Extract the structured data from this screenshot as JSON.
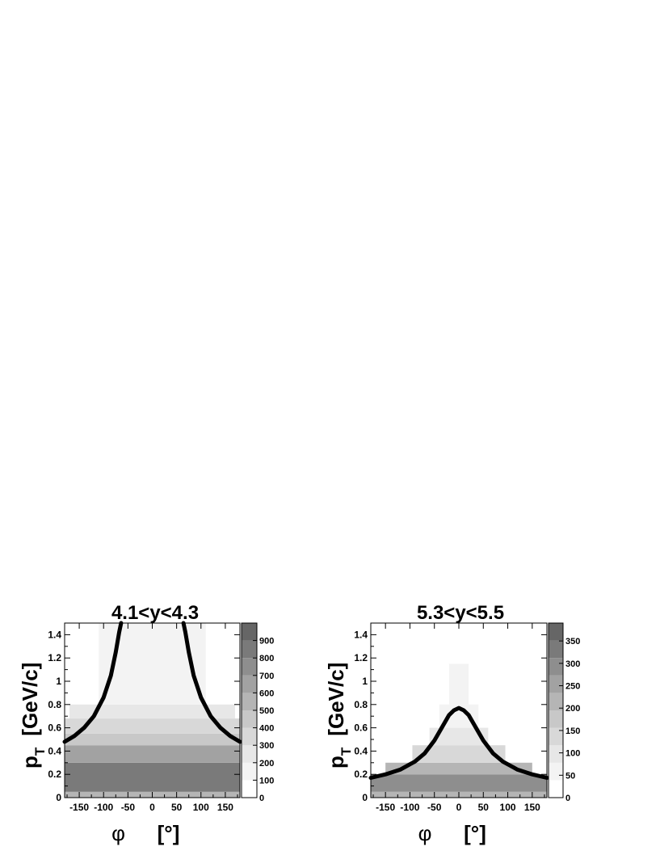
{
  "chart_data": [
    {
      "type": "heatmap",
      "title": "4.1<y<4.3",
      "xlabel_symbol": "φ",
      "xlabel_unit": "[°]",
      "ylabel_main": "p",
      "ylabel_sub": "T",
      "ylabel_unit": "[GeV/c]",
      "xlim": [
        -180,
        180
      ],
      "ylim": [
        0,
        1.5
      ],
      "xticks": [
        -150,
        -100,
        -50,
        0,
        50,
        100,
        150
      ],
      "yticks": [
        0,
        0.2,
        0.4,
        0.6,
        0.8,
        1,
        1.2,
        1.4
      ],
      "ytick_labels": [
        "0",
        "0.2",
        "0.4",
        "0.6",
        "0.8",
        "1",
        "1.2",
        "1.4"
      ],
      "colorbar": {
        "min": 0,
        "max": 1000,
        "ticks": [
          0,
          100,
          200,
          300,
          400,
          500,
          600,
          700,
          800,
          900
        ],
        "bands": [
          {
            "from": 0,
            "to": 100,
            "color": "#ffffff"
          },
          {
            "from": 100,
            "to": 200,
            "color": "#f3f3f3"
          },
          {
            "from": 200,
            "to": 300,
            "color": "#e7e7e7"
          },
          {
            "from": 300,
            "to": 400,
            "color": "#d8d8d8"
          },
          {
            "from": 400,
            "to": 500,
            "color": "#c8c8c8"
          },
          {
            "from": 500,
            "to": 600,
            "color": "#b5b5b5"
          },
          {
            "from": 600,
            "to": 700,
            "color": "#a2a2a2"
          },
          {
            "from": 700,
            "to": 800,
            "color": "#8e8e8e"
          },
          {
            "from": 800,
            "to": 900,
            "color": "#7a7a7a"
          },
          {
            "from": 900,
            "to": 1000,
            "color": "#666666"
          }
        ]
      },
      "density_regions": [
        {
          "pt_from": 0.0,
          "pt_to": 0.05,
          "level": 500,
          "phi_half_width": 180
        },
        {
          "pt_from": 0.05,
          "pt_to": 0.3,
          "level": 800,
          "phi_half_width": 180
        },
        {
          "pt_from": 0.3,
          "pt_to": 0.45,
          "level": 650,
          "phi_half_width": 180
        },
        {
          "pt_from": 0.45,
          "pt_to": 0.55,
          "level": 450,
          "phi_half_width": 180
        },
        {
          "pt_from": 0.55,
          "pt_to": 0.68,
          "level": 300,
          "phi_half_width": 180
        },
        {
          "pt_from": 0.68,
          "pt_to": 0.8,
          "level": 220,
          "phi_half_width": 170
        },
        {
          "pt_from": 0.8,
          "pt_to": 1.5,
          "level": 130,
          "phi_half_width": 110
        }
      ],
      "curve": {
        "branches": [
          {
            "phi": [
              -180,
              -160,
              -140,
              -120,
              -100,
              -85,
              -75,
              -68,
              -64
            ],
            "pt": [
              0.48,
              0.53,
              0.6,
              0.7,
              0.86,
              1.05,
              1.25,
              1.42,
              1.5
            ]
          },
          {
            "phi": [
              64,
              68,
              75,
              85,
              100,
              120,
              140,
              160,
              180
            ],
            "pt": [
              1.5,
              1.42,
              1.25,
              1.05,
              0.86,
              0.7,
              0.6,
              0.53,
              0.48
            ]
          }
        ]
      }
    },
    {
      "type": "heatmap",
      "title": "5.3<y<5.5",
      "xlabel_symbol": "φ",
      "xlabel_unit": "[°]",
      "ylabel_main": "p",
      "ylabel_sub": "T",
      "ylabel_unit": "[GeV/c]",
      "xlim": [
        -180,
        180
      ],
      "ylim": [
        0,
        1.5
      ],
      "xticks": [
        -150,
        -100,
        -50,
        0,
        50,
        100,
        150
      ],
      "yticks": [
        0,
        0.2,
        0.4,
        0.6,
        0.8,
        1,
        1.2,
        1.4
      ],
      "ytick_labels": [
        "0",
        "0.2",
        "0.4",
        "0.6",
        "0.8",
        "1",
        "1.2",
        "1.4"
      ],
      "colorbar": {
        "min": 0,
        "max": 390,
        "ticks": [
          0,
          50,
          100,
          150,
          200,
          250,
          300,
          350
        ],
        "bands": [
          {
            "from": 0,
            "to": 39,
            "color": "#ffffff"
          },
          {
            "from": 39,
            "to": 78,
            "color": "#f3f3f3"
          },
          {
            "from": 78,
            "to": 117,
            "color": "#e7e7e7"
          },
          {
            "from": 117,
            "to": 156,
            "color": "#d8d8d8"
          },
          {
            "from": 156,
            "to": 195,
            "color": "#c8c8c8"
          },
          {
            "from": 195,
            "to": 234,
            "color": "#b5b5b5"
          },
          {
            "from": 234,
            "to": 273,
            "color": "#a2a2a2"
          },
          {
            "from": 273,
            "to": 312,
            "color": "#8e8e8e"
          },
          {
            "from": 312,
            "to": 351,
            "color": "#7a7a7a"
          },
          {
            "from": 351,
            "to": 390,
            "color": "#666666"
          }
        ]
      },
      "density_regions": [
        {
          "pt_from": 0.0,
          "pt_to": 0.05,
          "level": 200,
          "phi_half_width": 180
        },
        {
          "pt_from": 0.05,
          "pt_to": 0.2,
          "level": 300,
          "phi_half_width": 180
        },
        {
          "pt_from": 0.2,
          "pt_to": 0.3,
          "level": 230,
          "phi_half_width": 150
        },
        {
          "pt_from": 0.3,
          "pt_to": 0.45,
          "level": 150,
          "phi_half_width": 95
        },
        {
          "pt_from": 0.45,
          "pt_to": 0.6,
          "level": 90,
          "phi_half_width": 60
        },
        {
          "pt_from": 0.6,
          "pt_to": 0.8,
          "level": 50,
          "phi_half_width": 40
        },
        {
          "pt_from": 0.8,
          "pt_to": 1.15,
          "level": 40,
          "phi_half_width": 20
        }
      ],
      "curve": {
        "branches": [
          {
            "phi": [
              -180,
              -150,
              -120,
              -90,
              -70,
              -50,
              -35,
              -20,
              -10,
              0,
              10,
              20,
              35,
              50,
              70,
              90,
              120,
              150,
              180
            ],
            "pt": [
              0.17,
              0.2,
              0.24,
              0.31,
              0.38,
              0.49,
              0.6,
              0.71,
              0.75,
              0.77,
              0.75,
              0.71,
              0.6,
              0.49,
              0.38,
              0.31,
              0.24,
              0.2,
              0.17
            ]
          }
        ]
      }
    }
  ]
}
